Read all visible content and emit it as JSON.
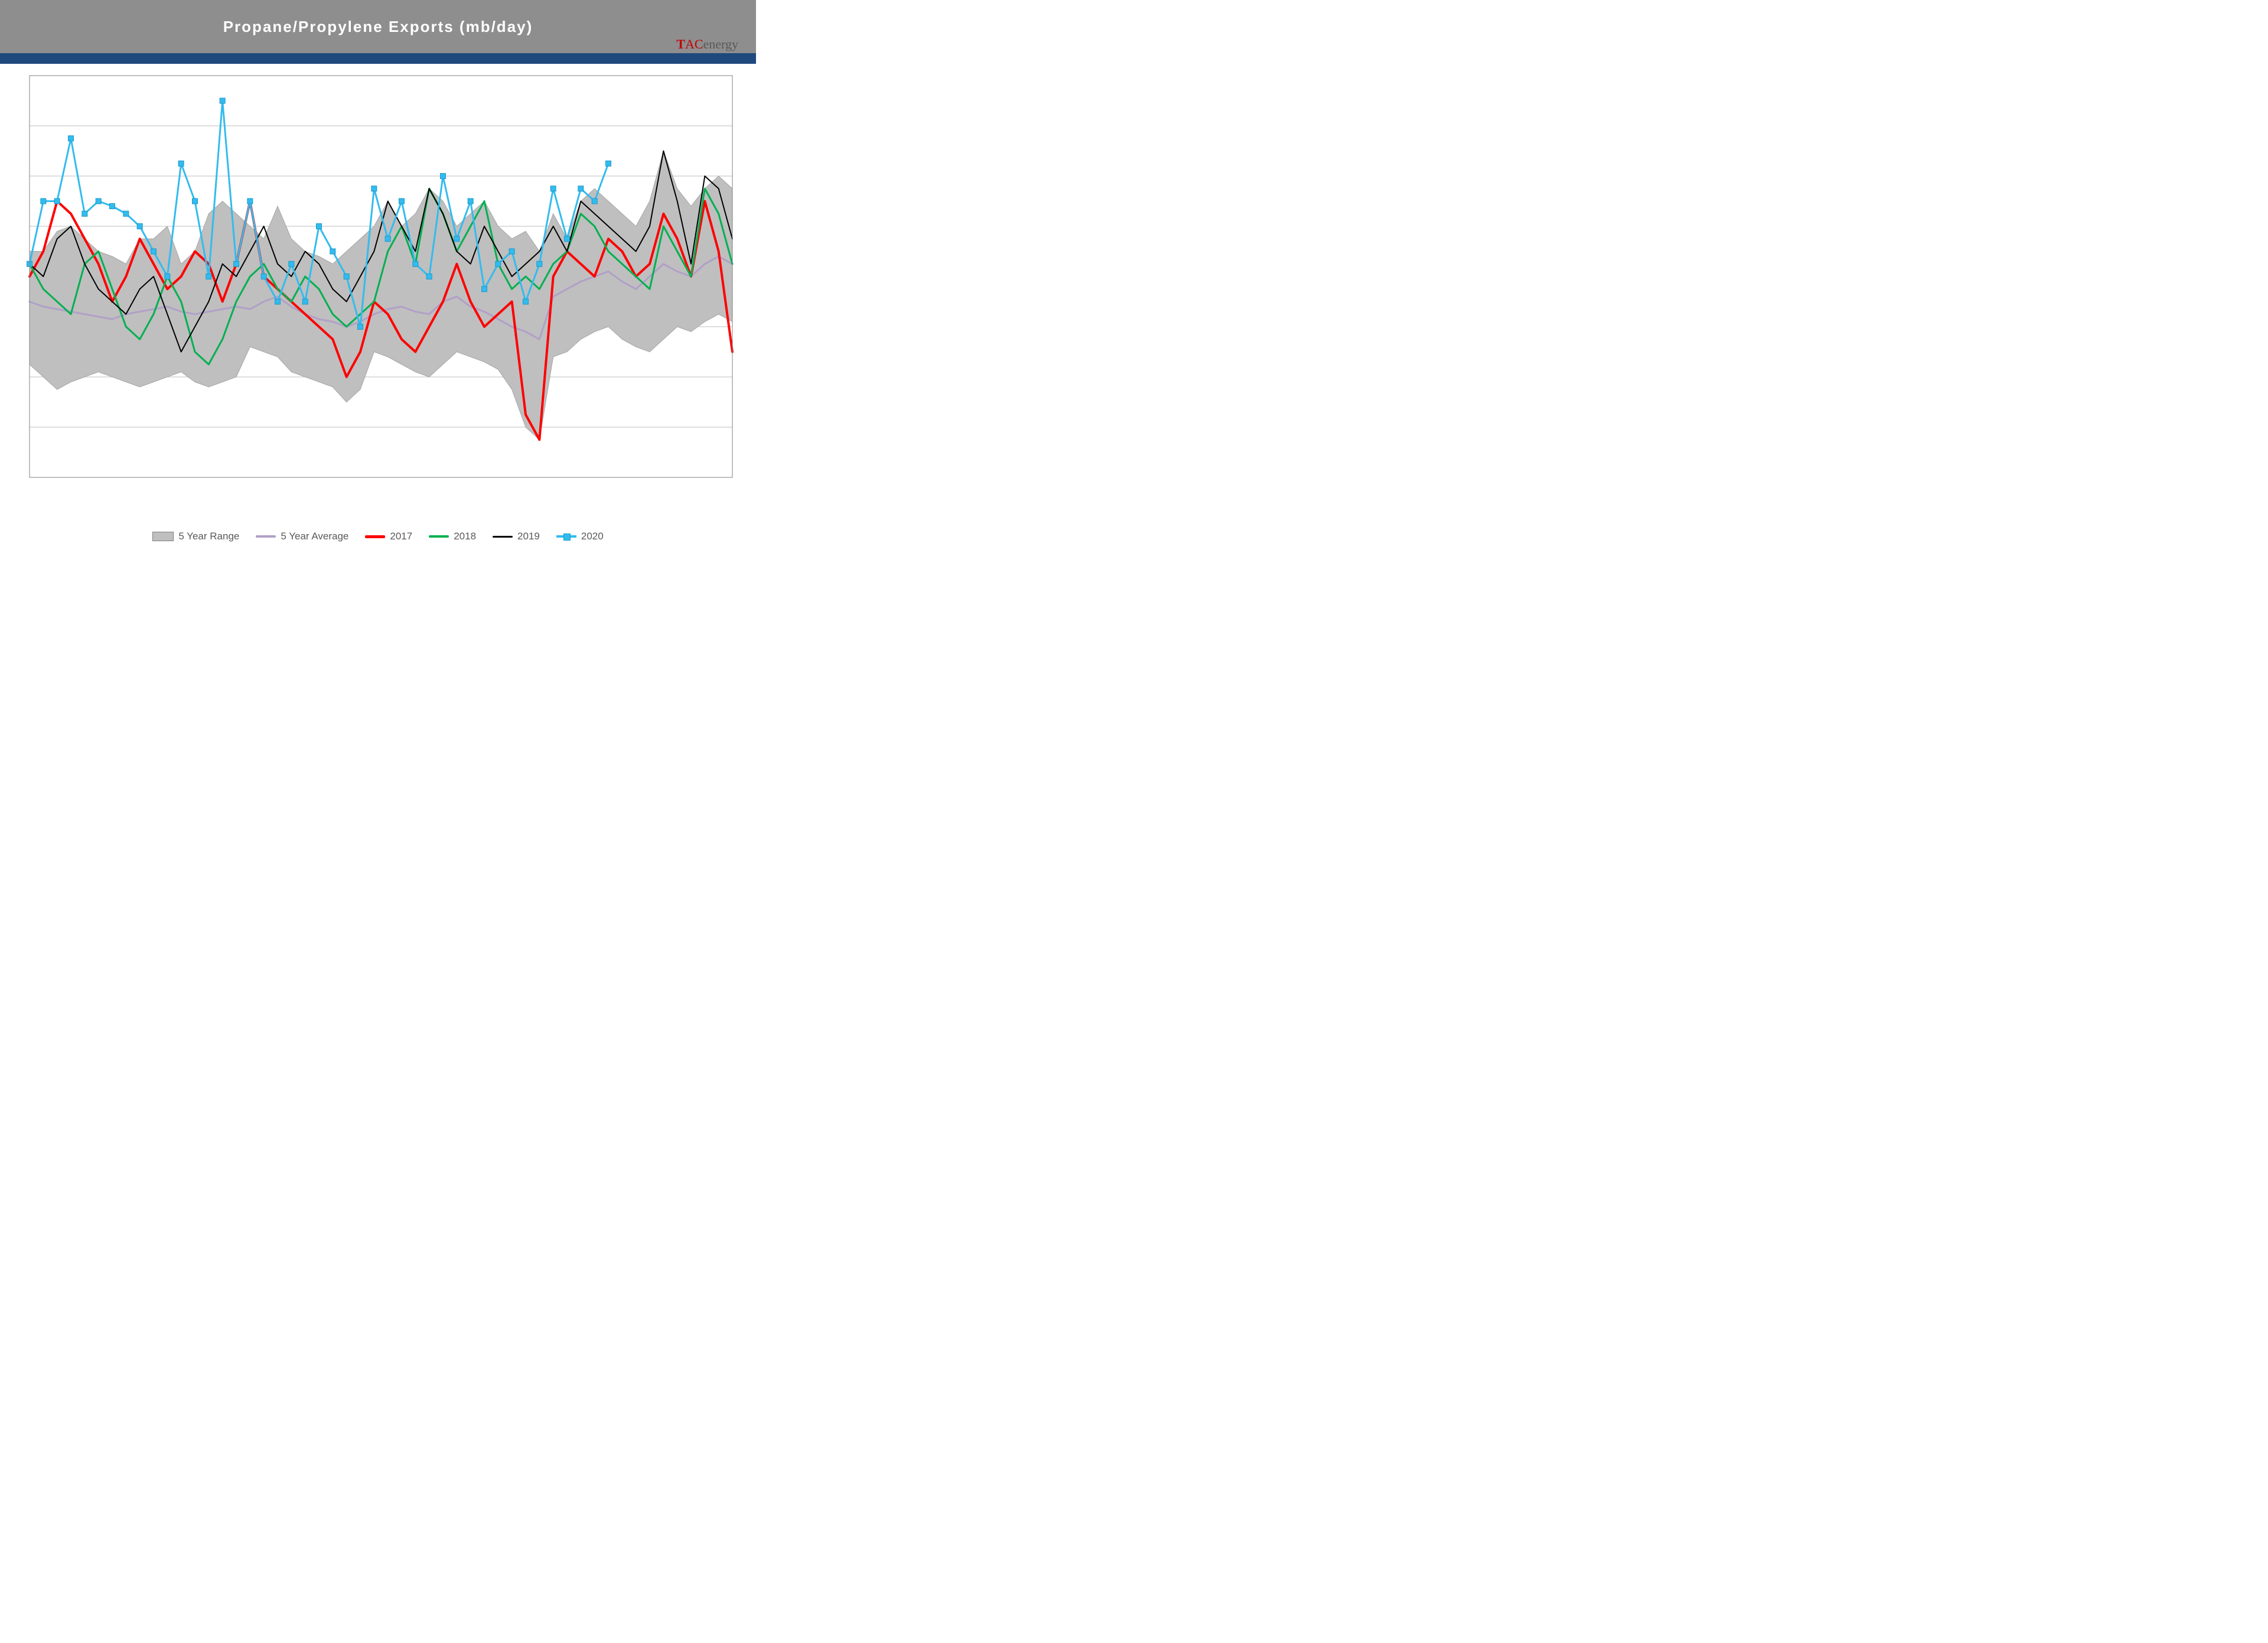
{
  "title": "Propane/Propylene  Exports  (mb/day)",
  "logo_text": {
    "t": "T",
    "a": "A",
    "c": "C",
    "rest": "energy"
  },
  "chart": {
    "type": "line",
    "background_color": "#ffffff",
    "title_bar_color": "#8e8e8e",
    "title_text_color": "#ffffff",
    "title_fontsize": 26,
    "accent_strip_color": "#1f497d",
    "plot_border_color": "#808080",
    "grid_color": "#bfbfbf",
    "grid_width": 1,
    "ylim": [
      200,
      1800
    ],
    "ytick_step": 200,
    "n_points": 52,
    "series": {
      "range_high": {
        "label": "5 Year Range",
        "fill_color": "#bfbfbf",
        "stroke_color": "#a6a6a6",
        "values": [
          1100,
          1100,
          1180,
          1200,
          1150,
          1100,
          1080,
          1050,
          1150,
          1150,
          1200,
          1050,
          1100,
          1250,
          1300,
          1250,
          1200,
          1150,
          1280,
          1150,
          1100,
          1080,
          1050,
          1100,
          1150,
          1200,
          1300,
          1200,
          1250,
          1350,
          1300,
          1200,
          1250,
          1300,
          1200,
          1150,
          1180,
          1100,
          1250,
          1150,
          1300,
          1350,
          1300,
          1250,
          1200,
          1300,
          1500,
          1350,
          1280,
          1350,
          1400,
          1350
        ]
      },
      "range_low": {
        "values": [
          650,
          600,
          550,
          580,
          600,
          620,
          600,
          580,
          560,
          580,
          600,
          620,
          580,
          560,
          580,
          600,
          720,
          700,
          680,
          620,
          600,
          580,
          560,
          500,
          550,
          700,
          680,
          650,
          620,
          600,
          650,
          700,
          680,
          660,
          630,
          550,
          400,
          350,
          680,
          700,
          750,
          780,
          800,
          750,
          720,
          700,
          750,
          800,
          780,
          820,
          850,
          820
        ]
      },
      "avg": {
        "label": "5 Year Average",
        "color": "#b1a0c7",
        "width": 3,
        "values": [
          900,
          880,
          870,
          860,
          850,
          840,
          830,
          850,
          860,
          870,
          880,
          860,
          850,
          860,
          870,
          880,
          870,
          900,
          920,
          880,
          850,
          830,
          820,
          800,
          820,
          850,
          870,
          880,
          860,
          850,
          900,
          920,
          880,
          860,
          830,
          800,
          780,
          750,
          920,
          950,
          980,
          1000,
          1020,
          980,
          950,
          1000,
          1050,
          1020,
          1000,
          1050,
          1080,
          1050
        ]
      },
      "y2017": {
        "label": "2017",
        "color": "#ff0000",
        "width": 4,
        "values": [
          1000,
          1100,
          1300,
          1250,
          1150,
          1050,
          900,
          1000,
          1150,
          1050,
          950,
          1000,
          1100,
          1050,
          900,
          1050,
          1300,
          1000,
          950,
          900,
          850,
          800,
          750,
          600,
          700,
          900,
          850,
          750,
          700,
          800,
          900,
          1050,
          900,
          800,
          850,
          900,
          450,
          350,
          1000,
          1100,
          1050,
          1000,
          1150,
          1100,
          1000,
          1050,
          1250,
          1150,
          1000,
          1300,
          1100,
          700
        ]
      },
      "y2018": {
        "label": "2018",
        "color": "#00b050",
        "width": 3,
        "values": [
          1050,
          950,
          900,
          850,
          1050,
          1100,
          950,
          800,
          750,
          850,
          1000,
          900,
          700,
          650,
          750,
          900,
          1000,
          1050,
          950,
          900,
          1000,
          950,
          850,
          800,
          850,
          900,
          1100,
          1200,
          1050,
          1350,
          1250,
          1100,
          1200,
          1300,
          1050,
          950,
          1000,
          950,
          1050,
          1100,
          1250,
          1200,
          1100,
          1050,
          1000,
          950,
          1200,
          1100,
          1000,
          1350,
          1250,
          1050
        ]
      },
      "y2019": {
        "label": "2019",
        "color": "#000000",
        "width": 2,
        "values": [
          1050,
          1000,
          1150,
          1200,
          1050,
          950,
          900,
          850,
          950,
          1000,
          850,
          700,
          800,
          900,
          1050,
          1000,
          1100,
          1200,
          1050,
          1000,
          1100,
          1050,
          950,
          900,
          1000,
          1100,
          1300,
          1200,
          1100,
          1350,
          1250,
          1100,
          1050,
          1200,
          1100,
          1000,
          1050,
          1100,
          1200,
          1100,
          1300,
          1250,
          1200,
          1150,
          1100,
          1200,
          1500,
          1300,
          1050,
          1400,
          1350,
          1150
        ]
      },
      "y2020": {
        "label": "2020",
        "color": "#33bbee",
        "width": 3,
        "marker": "square",
        "marker_size": 9,
        "values": [
          1050,
          1300,
          1300,
          1550,
          1250,
          1300,
          1280,
          1250,
          1200,
          1100,
          1000,
          1450,
          1300,
          1000,
          1700,
          1050,
          1300,
          1000,
          900,
          1050,
          900,
          1200,
          1100,
          1000,
          800,
          1350,
          1150,
          1300,
          1050,
          1000,
          1400,
          1150,
          1300,
          950,
          1050,
          1100,
          900,
          1050,
          1350,
          1150,
          1350,
          1300,
          1450
        ]
      }
    },
    "legend_items": [
      {
        "key": "range",
        "label": "5 Year Range"
      },
      {
        "key": "avg",
        "label": "5 Year Average"
      },
      {
        "key": "y2017",
        "label": "2017"
      },
      {
        "key": "y2018",
        "label": "2018"
      },
      {
        "key": "y2019",
        "label": "2019"
      },
      {
        "key": "y2020",
        "label": "2020"
      }
    ]
  }
}
